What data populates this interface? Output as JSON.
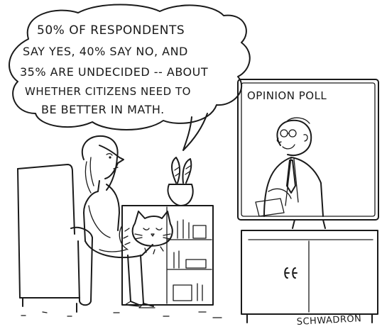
{
  "cartoon": {
    "speech_lines": [
      "50% OF RESPONDENTS",
      "SAY YES, 40% SAY NO, AND",
      "35% ARE UNDECIDED -- ABOUT",
      "WHETHER CITIZENS NEED TO",
      "BE BETTER IN MATH."
    ],
    "tv_caption": "OPINION POLL",
    "signature": "SCHWADRON",
    "colors": {
      "ink": "#1a1a1a",
      "paper": "#ffffff"
    }
  }
}
